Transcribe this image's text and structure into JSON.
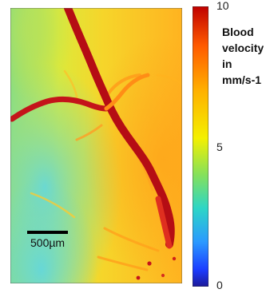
{
  "colorbar": {
    "title_lines": [
      "Blood",
      "velocity in",
      "mm/s-1"
    ],
    "max_label": "10",
    "mid_label": "5",
    "min_label": "0",
    "gradient_colors": [
      "#c00000",
      "#ff5a00",
      "#ffb000",
      "#f4f000",
      "#86e15a",
      "#2dd6c6",
      "#2b9aff",
      "#1b3cff",
      "#1d1a99"
    ]
  },
  "scale_bar": {
    "label": "500µm",
    "color": "#000000"
  },
  "heatmap_palette": {
    "vessel_dark": "#c4141a",
    "vessel_mid": "#df2f1f",
    "background_orange": "#ffb320",
    "background_yellow": "#f5e428",
    "background_green": "#8bdd7d",
    "background_cyan": "#67d8d7"
  }
}
